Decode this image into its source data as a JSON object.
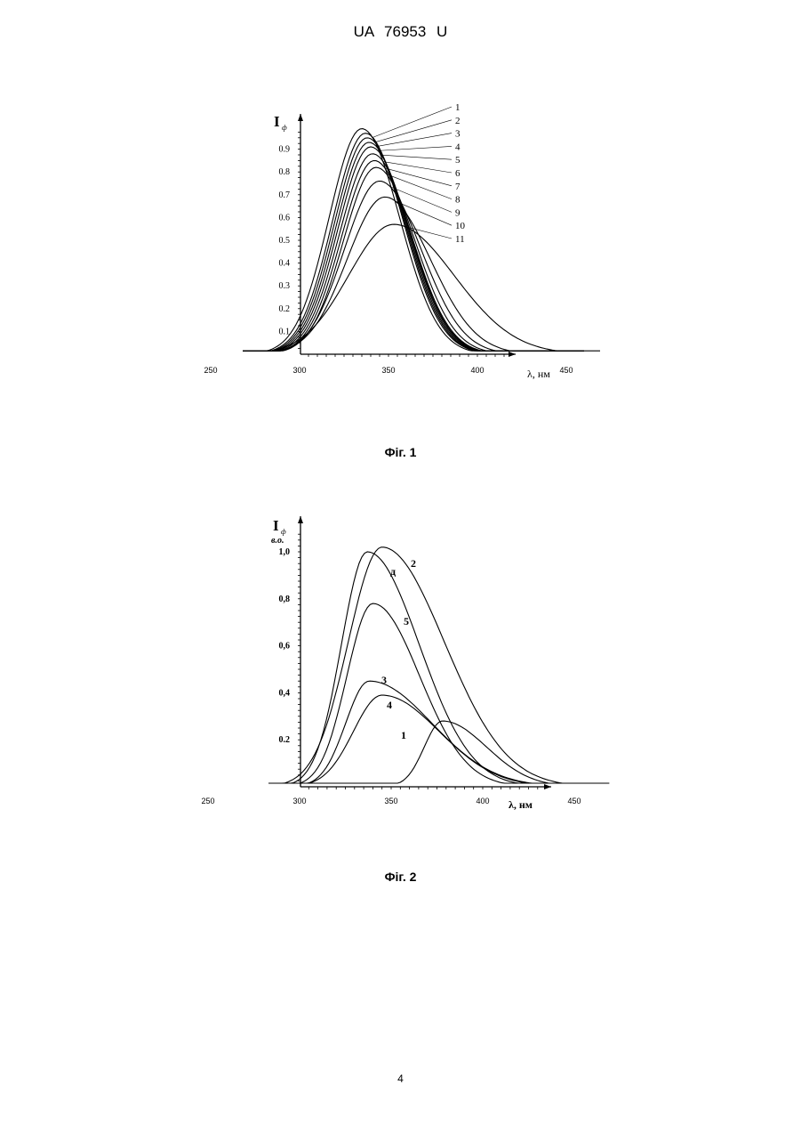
{
  "header": {
    "doc_id": "UA   76953   U"
  },
  "page_number": "4",
  "figures": [
    {
      "caption": "Фіг. 1",
      "chart_data": {
        "type": "line",
        "ylabel": "I",
        "ylabel_sub": "ф",
        "ylabel_unit": "",
        "xlabel": "λ, нм",
        "xlim": [
          250,
          470
        ],
        "ylim": [
          0,
          1.0
        ],
        "x_ticks": [
          "250",
          "300",
          "350",
          "400",
          "450"
        ],
        "y_ticks": [
          "0.1",
          "0.2",
          "0.3",
          "0.4",
          "0.5",
          "0.6",
          "0.7",
          "0.8",
          "0.9"
        ],
        "series": [
          {
            "name": "1",
            "peak_x": 335,
            "peak_y": 0.99,
            "width_l": 26,
            "width_r": 30
          },
          {
            "name": "2",
            "peak_x": 337,
            "peak_y": 0.97,
            "width_l": 26,
            "width_r": 30
          },
          {
            "name": "3",
            "peak_x": 338,
            "peak_y": 0.95,
            "width_l": 26,
            "width_r": 30
          },
          {
            "name": "4",
            "peak_x": 339,
            "peak_y": 0.93,
            "width_l": 26,
            "width_r": 30
          },
          {
            "name": "5",
            "peak_x": 340,
            "peak_y": 0.91,
            "width_l": 26,
            "width_r": 30
          },
          {
            "name": "6",
            "peak_x": 341,
            "peak_y": 0.88,
            "width_l": 26,
            "width_r": 30
          },
          {
            "name": "7",
            "peak_x": 342,
            "peak_y": 0.85,
            "width_l": 26,
            "width_r": 30
          },
          {
            "name": "8",
            "peak_x": 343,
            "peak_y": 0.82,
            "width_l": 26,
            "width_r": 31
          },
          {
            "name": "9",
            "peak_x": 345,
            "peak_y": 0.76,
            "width_l": 28,
            "width_r": 33
          },
          {
            "name": "10",
            "peak_x": 348,
            "peak_y": 0.69,
            "width_l": 30,
            "width_r": 36
          },
          {
            "name": "11",
            "peak_x": 353,
            "peak_y": 0.57,
            "width_l": 36,
            "width_r": 48
          }
        ]
      }
    },
    {
      "caption": "Фіг. 2",
      "chart_data": {
        "type": "line",
        "ylabel": "I",
        "ylabel_sub": "ф",
        "ylabel_unit": "в.о.",
        "xlabel": "λ, нм",
        "xlim": [
          250,
          470
        ],
        "ylim": [
          0,
          1.1
        ],
        "x_ticks": [
          "250",
          "300",
          "350",
          "400",
          "450"
        ],
        "y_ticks": [
          "0.2",
          "0,4",
          "0,6",
          "0,8",
          "1,0"
        ],
        "series": [
          {
            "name": "2",
            "peak_x": 345,
            "peak_y": 1.02,
            "width_l": 26,
            "width_r": 48
          },
          {
            "name": "д",
            "peak_x": 337,
            "peak_y": 1.0,
            "width_l": 20,
            "width_r": 40
          },
          {
            "name": "5",
            "peak_x": 340,
            "peak_y": 0.78,
            "width_l": 20,
            "width_r": 36
          },
          {
            "name": "3",
            "peak_x": 338,
            "peak_y": 0.45,
            "width_l": 18,
            "width_r": 48
          },
          {
            "name": "4",
            "peak_x": 345,
            "peak_y": 0.39,
            "width_l": 22,
            "width_r": 44
          },
          {
            "name": "1",
            "peak_x": 378,
            "peak_y": 0.28,
            "width_l": 14,
            "width_r": 34
          }
        ]
      }
    }
  ]
}
